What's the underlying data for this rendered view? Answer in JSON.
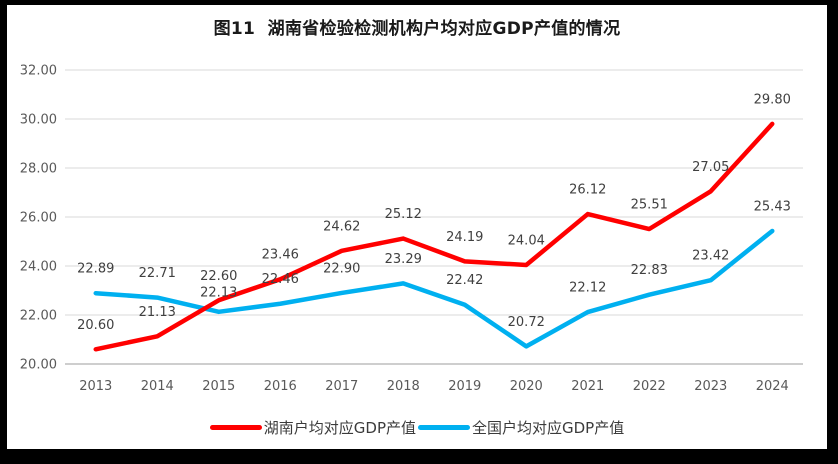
{
  "chart_data": {
    "type": "line",
    "title": "图11  湖南省检验检测机构户均对应GDP产值的情况",
    "categories": [
      "2013",
      "2014",
      "2015",
      "2016",
      "2017",
      "2018",
      "2019",
      "2020",
      "2021",
      "2022",
      "2023",
      "2024"
    ],
    "series": [
      {
        "name": "湖南户均对应GDP产值",
        "color": "#ff0000",
        "values": [
          20.6,
          21.13,
          22.6,
          23.46,
          24.62,
          25.12,
          24.19,
          24.04,
          26.12,
          25.51,
          27.05,
          29.8
        ],
        "label_dy": {}
      },
      {
        "name": "全国户均对应GDP产值",
        "color": "#00b0f0",
        "values": [
          22.89,
          22.71,
          22.13,
          22.46,
          22.9,
          23.29,
          22.42,
          20.72,
          22.12,
          22.83,
          23.42,
          25.43
        ],
        "label_dy": {
          "2": 5
        }
      }
    ],
    "ylim": [
      20,
      32
    ],
    "ytick_step": 2,
    "yticks": [
      "20.00",
      "22.00",
      "24.00",
      "26.00",
      "28.00",
      "30.00",
      "32.00"
    ],
    "grid": true,
    "data_labels": true,
    "legend_position": "bottom",
    "colors": {
      "gridline": "#d9d9d9",
      "axis_line": "#bdbdbd",
      "tick_label": "#595959",
      "data_label": "#404040",
      "title": "#1a1a1a",
      "frame": "#000000",
      "background": "#ffffff"
    }
  }
}
